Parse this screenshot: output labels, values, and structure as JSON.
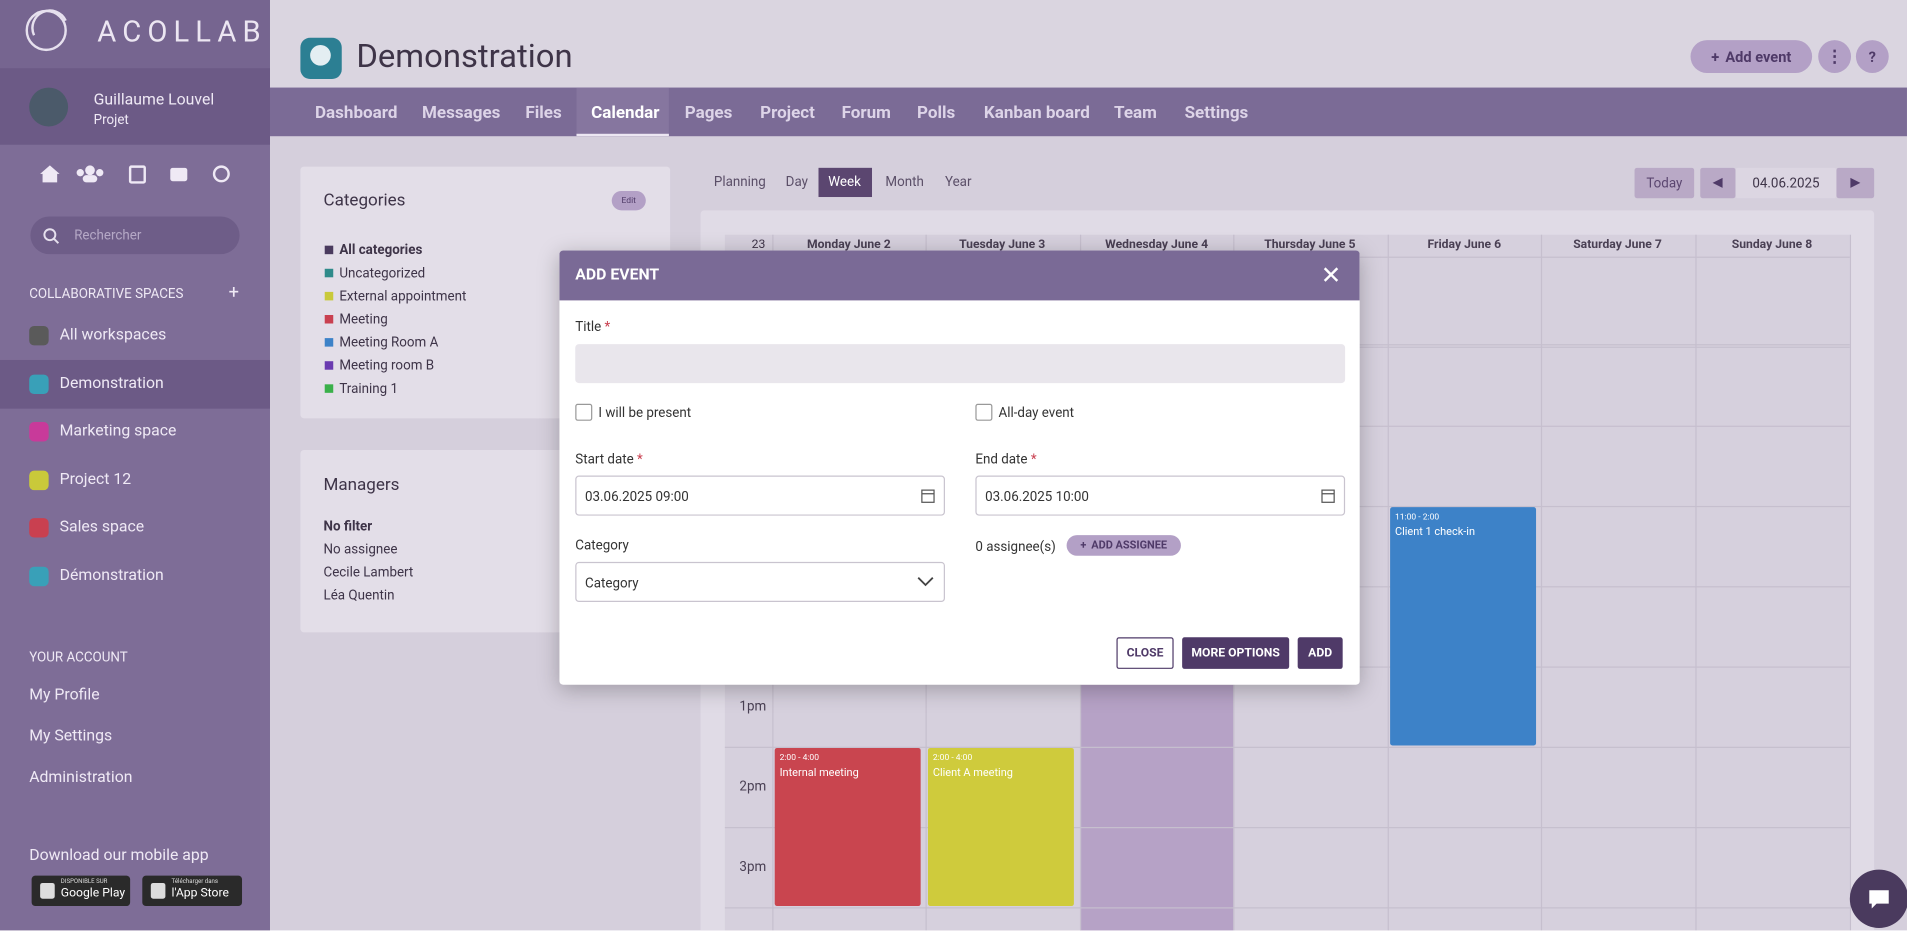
{
  "sidebar": {
    "logo": "ACOLLAB",
    "user": {
      "name": "Guillaume Louvel",
      "role": "Projet"
    },
    "search_placeholder": "Rechercher",
    "spaces_heading": "COLLABORATIVE SPACES",
    "spaces": [
      {
        "label": "All workspaces",
        "color": "#5a5a5a"
      },
      {
        "label": "Demonstration",
        "color": "#39a0b8"
      },
      {
        "label": "Marketing space",
        "color": "#c83a9a"
      },
      {
        "label": "Project 12",
        "color": "#c9c93a"
      },
      {
        "label": "Sales space",
        "color": "#c94050"
      },
      {
        "label": "Démonstration",
        "color": "#39a0b8"
      }
    ],
    "active_space": 1,
    "account_heading": "YOUR ACCOUNT",
    "account_links": [
      "My Profile",
      "My Settings",
      "Administration"
    ],
    "app_heading": "Download our mobile app",
    "stores": [
      {
        "small": "DISPONIBLE SUR",
        "name": "Google Play"
      },
      {
        "small": "Télécharger dans",
        "name": "l'App Store"
      }
    ]
  },
  "header": {
    "title": "Demonstration",
    "add_event": "Add event",
    "help": "?"
  },
  "tabs": [
    "Dashboard",
    "Messages",
    "Files",
    "Calendar",
    "Pages",
    "Project",
    "Forum",
    "Polls",
    "Kanban board",
    "Team",
    "Settings"
  ],
  "active_tab": 3,
  "categories_panel": {
    "title": "Categories",
    "edit": "Edit",
    "items": [
      {
        "label": "All categories",
        "color": "#4a3a5e"
      },
      {
        "label": "Uncategorized",
        "color": "#2f8a8a"
      },
      {
        "label": "External appointment",
        "color": "#c9c93a"
      },
      {
        "label": "Meeting",
        "color": "#c94050"
      },
      {
        "label": "Meeting Room A",
        "color": "#3d82c8"
      },
      {
        "label": "Meeting room B",
        "color": "#6a3ab0"
      },
      {
        "label": "Training 1",
        "color": "#3ab04a"
      }
    ]
  },
  "managers_panel": {
    "title": "Managers",
    "items": [
      "No filter",
      "No assignee",
      "Cecile Lambert",
      "Léa Quentin"
    ]
  },
  "calendar": {
    "views": [
      "Planning",
      "Day",
      "Week",
      "Month",
      "Year"
    ],
    "active_view": 2,
    "today": "Today",
    "date": "04.06.2025",
    "week_number": "23",
    "days": [
      "Monday June 2",
      "Tuesday June 3",
      "Wednesday June 4",
      "Thursday June 5",
      "Friday June 6",
      "Saturday June 7",
      "Sunday June 8"
    ],
    "hours": [
      "1pm",
      "2pm",
      "3pm"
    ],
    "events": [
      {
        "time": "11:00 - 2:00",
        "title": "Client 1 check-in",
        "color": "#3d82c8"
      },
      {
        "time": "2:00 - 4:00",
        "title": "Internal meeting",
        "color": "#c9454f"
      },
      {
        "time": "2:00 - 4:00",
        "title": "Client A meeting",
        "color": "#cfcb3c"
      }
    ]
  },
  "dialog": {
    "title": "ADD EVENT",
    "required_mark": "*",
    "title_label": "Title",
    "present_label": "I will be present",
    "allday_label": "All-day event",
    "start_label": "Start date",
    "start_value": "03.06.2025 09:00",
    "end_label": "End date",
    "end_value": "03.06.2025 10:00",
    "category_label": "Category",
    "category_placeholder": "Category",
    "assignees": "0 assignee(s)",
    "add_assignee": "ADD ASSIGNEE",
    "close": "CLOSE",
    "more_options": "MORE OPTIONS",
    "add": "ADD"
  }
}
